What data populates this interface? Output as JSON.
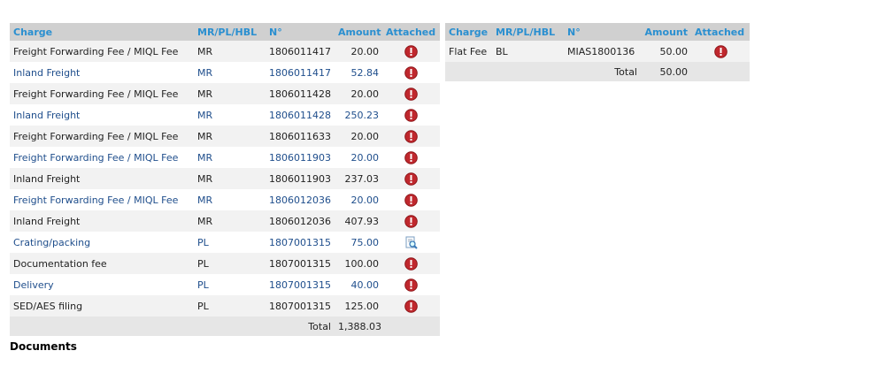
{
  "left_table": {
    "headers": [
      "Charge",
      "MR/PL/HBL",
      "N°",
      "Amount",
      "Attached"
    ],
    "rows": [
      [
        "Freight Forwarding Fee / MIQL Fee",
        "MR",
        "1806011417",
        "20.00",
        "warning"
      ],
      [
        "Inland Freight",
        "MR",
        "1806011417",
        "52.84",
        "warning"
      ],
      [
        "Freight Forwarding Fee / MIQL Fee",
        "MR",
        "1806011428",
        "20.00",
        "warning"
      ],
      [
        "Inland Freight",
        "MR",
        "1806011428",
        "250.23",
        "warning"
      ],
      [
        "Freight Forwarding Fee / MIQL Fee",
        "MR",
        "1806011633",
        "20.00",
        "warning"
      ],
      [
        "Freight Forwarding Fee / MIQL Fee",
        "MR",
        "1806011903",
        "20.00",
        "warning"
      ],
      [
        "Inland Freight",
        "MR",
        "1806011903",
        "237.03",
        "warning"
      ],
      [
        "Freight Forwarding Fee / MIQL Fee",
        "MR",
        "1806012036",
        "20.00",
        "warning"
      ],
      [
        "Inland Freight",
        "MR",
        "1806012036",
        "407.93",
        "warning"
      ],
      [
        "Crating/packing",
        "PL",
        "1807001315",
        "75.00",
        "view"
      ],
      [
        "Documentation fee",
        "PL",
        "1807001315",
        "100.00",
        "warning"
      ],
      [
        "Delivery",
        "PL",
        "1807001315",
        "40.00",
        "warning"
      ],
      [
        "SED/AES filing",
        "PL",
        "1807001315",
        "125.00",
        "warning"
      ]
    ],
    "total_label": "Total",
    "total": "1,388.03"
  },
  "right_table": {
    "headers": [
      "Charge",
      "MR/PL/HBL",
      "N°",
      "Amount",
      "Attached"
    ],
    "rows": [
      [
        "Flat Fee",
        "BL",
        "MIAS1800136",
        "50.00",
        "warning"
      ]
    ],
    "total_label": "Total",
    "total": "50.00"
  },
  "footer": {
    "title": "Documents"
  }
}
